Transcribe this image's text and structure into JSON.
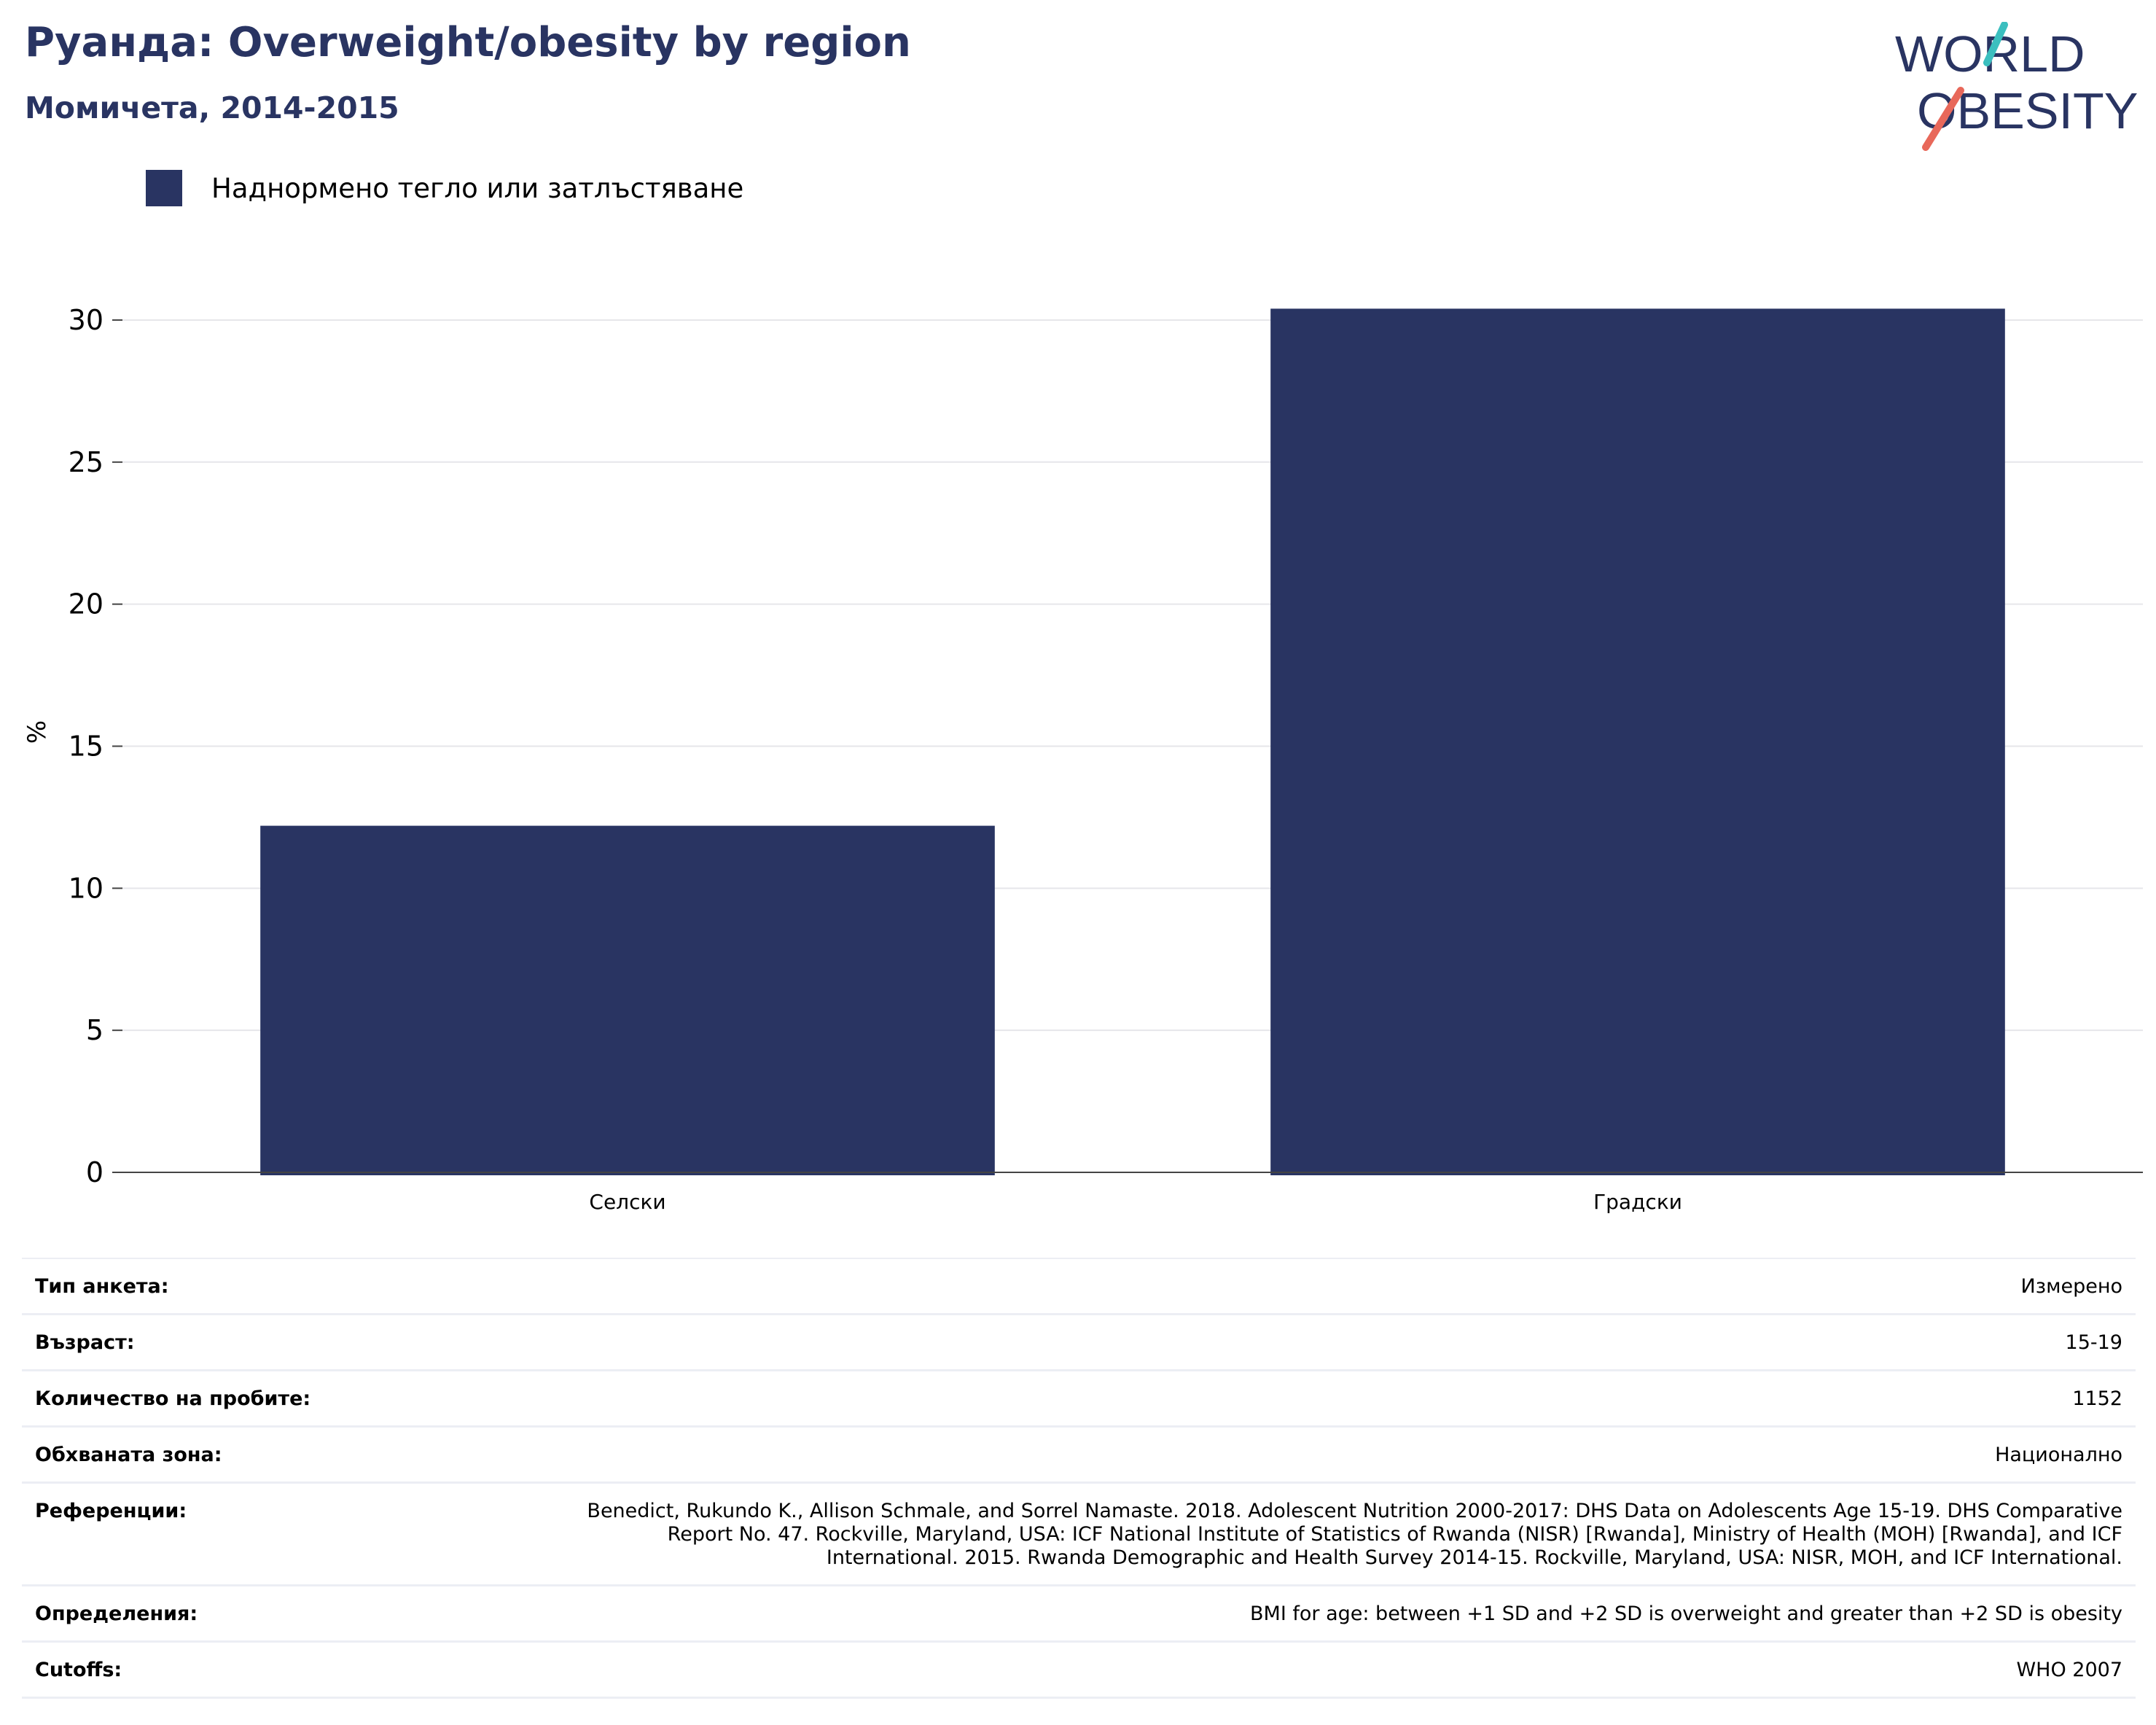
{
  "header": {
    "title": "Руанда: Overweight/obesity by region",
    "subtitle": "Момичета, 2014-2015"
  },
  "logo": {
    "line1": "WORLD",
    "line2": "OBESITY"
  },
  "colors": {
    "bar": "#293462",
    "title": "#293462",
    "logo_teal": "#3bbfbf",
    "logo_red": "#e8685a"
  },
  "chart_data": {
    "type": "bar",
    "categories": [
      "Селски",
      "Градски"
    ],
    "series": [
      {
        "name": "Наднормено тегло или затлъстяване",
        "values": [
          12.2,
          30.4
        ]
      }
    ],
    "ylabel": "%",
    "xlabel": "",
    "ylim": [
      0,
      31
    ],
    "yticks": [
      0,
      5,
      10,
      15,
      20,
      25,
      30
    ],
    "grid": true,
    "legend": "top-left"
  },
  "info": [
    {
      "label": "Тип анкета:",
      "value": "Измерено"
    },
    {
      "label": "Възраст:",
      "value": "15-19"
    },
    {
      "label": "Количество на пробите:",
      "value": "1152"
    },
    {
      "label": "Обхваната зона:",
      "value": "Национално"
    },
    {
      "label": "Референции:",
      "value": "Benedict, Rukundo K., Allison Schmale, and Sorrel Namaste. 2018. Adolescent Nutrition 2000-2017: DHS Data on Adolescents Age 15-19. DHS Comparative Report No. 47. Rockville, Maryland, USA: ICF National Institute of Statistics of Rwanda (NISR) [Rwanda], Ministry of Health (MOH) [Rwanda], and ICF International. 2015. Rwanda Demographic and Health Survey 2014-15. Rockville, Maryland, USA: NISR, MOH, and ICF International."
    },
    {
      "label": "Определения:",
      "value": "BMI for age: between +1 SD and +2 SD is overweight and greater than +2 SD is obesity"
    },
    {
      "label": "Cutoffs:",
      "value": "WHO 2007"
    }
  ]
}
